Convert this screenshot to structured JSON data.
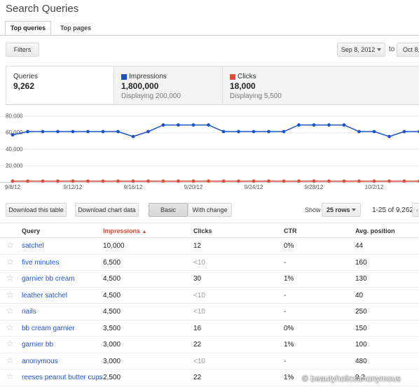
{
  "page_title": "Search Queries",
  "tabs": [
    {
      "label": "Top queries",
      "active": true
    },
    {
      "label": "Top pages",
      "active": false
    }
  ],
  "toolbar": {
    "filters_label": "Filters",
    "date_start": "Sep 8, 2012",
    "date_to_label": "to",
    "date_end": "Oct 8,"
  },
  "summary": {
    "queries": {
      "label": "Queries",
      "value": "9,262"
    },
    "impressions": {
      "label": "Impressions",
      "value": "1,800,000",
      "sub": "Displaying 200,000",
      "color": "#1a53c7"
    },
    "clicks": {
      "label": "Clicks",
      "value": "18,000",
      "sub": "Displaying 5,500",
      "color": "#dd4b39"
    }
  },
  "chart_data": {
    "type": "line",
    "y_tick_labels": [
      "80,000",
      "60,000",
      "40,000",
      "20,000"
    ],
    "x_tick_labels": [
      "9/8/12",
      "9/12/12",
      "9/16/12",
      "9/20/12",
      "9/24/12",
      "9/28/12",
      "10/2/12"
    ],
    "series": [
      {
        "name": "Impressions",
        "color": "#1a53c7",
        "values": [
          57000,
          61000,
          61000,
          61000,
          61000,
          61000,
          61000,
          61000,
          55000,
          61000,
          69000,
          69000,
          69000,
          69000,
          61000,
          61000,
          61000,
          61000,
          61000,
          69000,
          69000,
          69000,
          69000,
          61000,
          61000,
          55000,
          61000,
          61000,
          61000,
          61000,
          61000
        ]
      },
      {
        "name": "Clicks",
        "color": "#dd4b39",
        "values": [
          1000,
          1000,
          1000,
          1000,
          1000,
          1000,
          1000,
          1000,
          1000,
          1000,
          1000,
          1000,
          1000,
          1000,
          1000,
          1000,
          1000,
          1000,
          1000,
          1000,
          1000,
          1000,
          1000,
          1000,
          1000,
          1000,
          1000,
          1000,
          1000,
          1000,
          1000
        ]
      }
    ]
  },
  "actions": {
    "download_table": "Download this table",
    "download_chart": "Download chart data",
    "basic": "Basic",
    "with_change": "With change"
  },
  "pagination": {
    "show_label": "Show",
    "rows_option": "25 rows",
    "range": "1-25 of 9,262",
    "prev_glyph": "‹"
  },
  "table": {
    "columns": [
      "Query",
      "Impressions",
      "Clicks",
      "CTR",
      "Avg. position"
    ],
    "sort_indicator": "▲",
    "rows": [
      {
        "query": "satchel",
        "impressions": "10,000",
        "clicks": "12",
        "ctr": "0%",
        "position": "44"
      },
      {
        "query": "five minutes",
        "impressions": "6,500",
        "clicks": "<10",
        "ctr": "-",
        "position": "160"
      },
      {
        "query": "garnier bb cream",
        "impressions": "4,500",
        "clicks": "30",
        "ctr": "1%",
        "position": "130"
      },
      {
        "query": "leather satchel",
        "impressions": "4,500",
        "clicks": "<10",
        "ctr": "-",
        "position": "40"
      },
      {
        "query": "nails",
        "impressions": "4,500",
        "clicks": "<10",
        "ctr": "-",
        "position": "250"
      },
      {
        "query": "bb cream garnier",
        "impressions": "3,500",
        "clicks": "16",
        "ctr": "0%",
        "position": "150"
      },
      {
        "query": "garnier bb",
        "impressions": "3,000",
        "clicks": "22",
        "ctr": "1%",
        "position": "100"
      },
      {
        "query": "anonymous",
        "impressions": "3,000",
        "clicks": "<10",
        "ctr": "-",
        "position": "480"
      },
      {
        "query": "reeses peanut butter cups",
        "impressions": "2,500",
        "clicks": "22",
        "ctr": "1%",
        "position": "9.2"
      }
    ]
  },
  "watermark": "© beautyholicsanonymous"
}
